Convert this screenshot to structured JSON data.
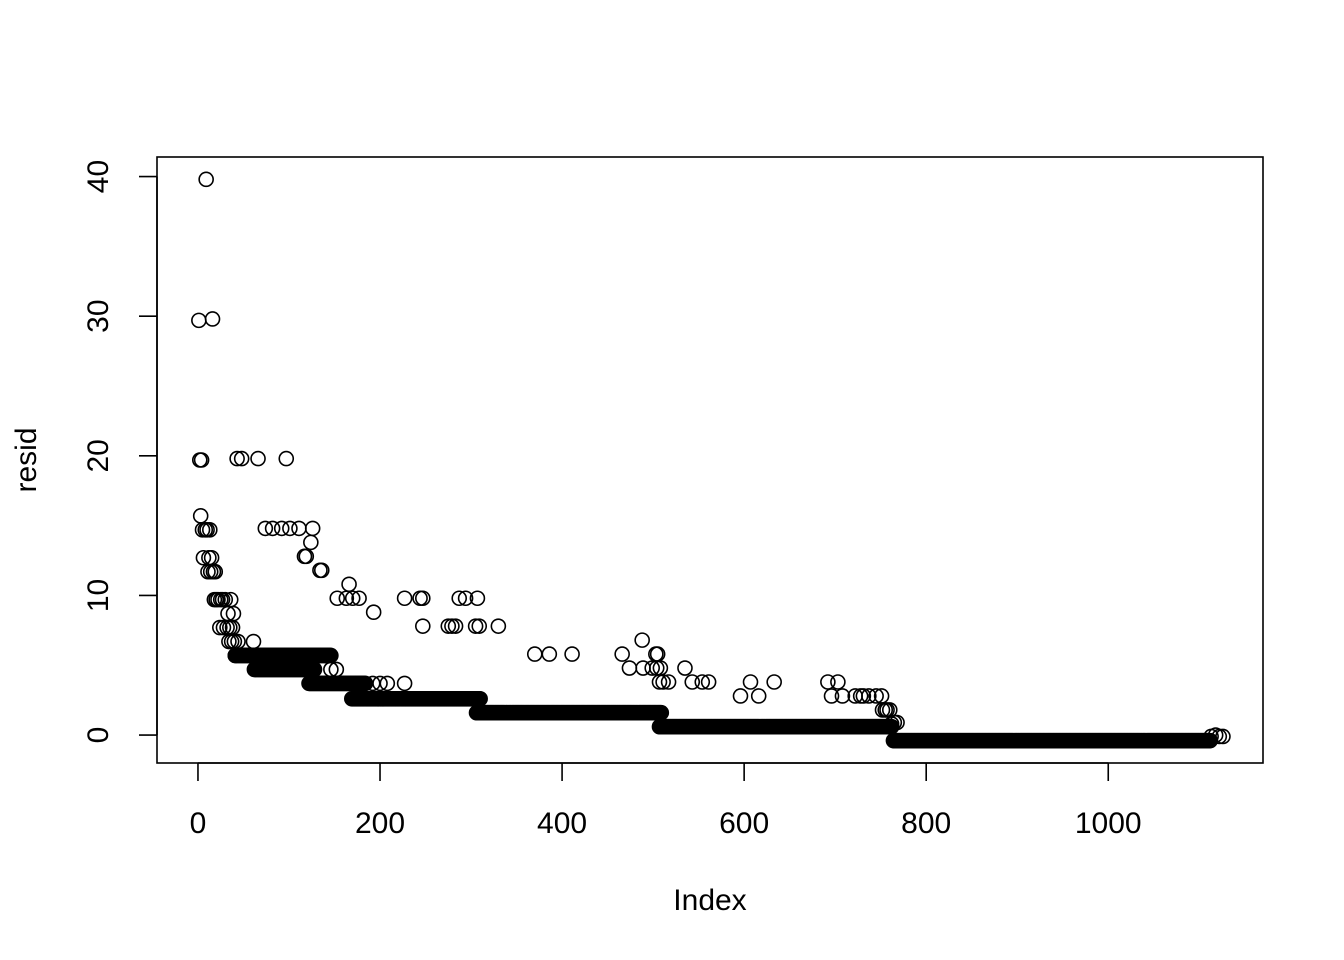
{
  "chart_data": {
    "type": "scatter",
    "xlabel": "Index",
    "ylabel": "resid",
    "xlim": [
      -45,
      1170
    ],
    "ylim": [
      -2,
      41.4
    ],
    "x_ticks": [
      0,
      200,
      400,
      600,
      800,
      1000
    ],
    "x_tick_labels": [
      "0",
      "200",
      "400",
      "600",
      "800",
      "1000"
    ],
    "y_ticks": [
      0,
      10,
      20,
      30,
      40
    ],
    "y_tick_labels": [
      "0",
      "10",
      "20",
      "30",
      "40"
    ],
    "grid": false,
    "marker": "open-circle",
    "color": "#000000",
    "series": [
      {
        "points": [
          [
            1,
            29.7
          ],
          [
            2,
            19.7
          ],
          [
            3,
            15.7
          ],
          [
            4,
            19.7
          ],
          [
            5,
            14.7
          ],
          [
            6,
            12.7
          ],
          [
            8,
            14.7
          ],
          [
            9,
            39.8
          ],
          [
            10,
            14.7
          ],
          [
            11,
            11.7
          ],
          [
            12,
            12.7
          ],
          [
            13,
            14.7
          ],
          [
            14,
            11.7
          ],
          [
            15,
            12.7
          ],
          [
            16,
            29.8
          ],
          [
            17,
            11.7
          ],
          [
            18,
            9.7
          ],
          [
            19,
            11.7
          ],
          [
            20,
            9.7
          ],
          [
            22,
            9.7
          ],
          [
            24,
            7.7
          ],
          [
            25,
            9.7
          ],
          [
            27,
            9.7
          ],
          [
            28,
            7.7
          ],
          [
            30,
            9.7
          ],
          [
            32,
            7.7
          ],
          [
            33,
            8.7
          ],
          [
            34,
            6.7
          ],
          [
            35,
            7.7
          ],
          [
            36,
            9.7
          ],
          [
            37,
            6.7
          ],
          [
            38,
            7.7
          ],
          [
            39,
            8.7
          ],
          [
            40,
            6.7
          ],
          [
            41,
            5.7
          ],
          [
            43,
            19.8
          ],
          [
            44,
            6.7
          ],
          [
            48,
            19.8
          ],
          [
            61,
            6.7
          ],
          [
            66,
            19.8
          ],
          [
            74,
            14.8
          ],
          [
            82,
            14.8
          ],
          [
            92,
            14.8
          ],
          [
            97,
            19.8
          ],
          [
            101,
            14.8
          ],
          [
            111,
            14.8
          ],
          [
            117,
            12.8
          ],
          [
            119,
            12.8
          ],
          [
            124,
            13.8
          ],
          [
            126,
            14.8
          ],
          [
            134,
            11.8
          ],
          [
            136,
            11.8
          ],
          [
            146,
            4.7
          ],
          [
            152,
            4.7
          ],
          [
            153,
            9.8
          ],
          [
            163,
            9.8
          ],
          [
            166,
            10.8
          ],
          [
            170,
            9.8
          ],
          [
            177,
            9.8
          ],
          [
            193,
            8.8
          ],
          [
            192,
            3.7
          ],
          [
            200,
            3.7
          ],
          [
            208,
            3.7
          ],
          [
            227,
            3.7
          ],
          [
            227,
            9.8
          ],
          [
            244,
            9.8
          ],
          [
            247,
            9.8
          ],
          [
            247,
            7.8
          ],
          [
            275,
            7.8
          ],
          [
            279,
            7.8
          ],
          [
            283,
            7.8
          ],
          [
            287,
            9.8
          ],
          [
            294,
            9.8
          ],
          [
            305,
            7.8
          ],
          [
            307,
            9.8
          ],
          [
            309,
            7.8
          ],
          [
            330,
            7.8
          ],
          [
            370,
            5.8
          ],
          [
            386,
            5.8
          ],
          [
            411,
            5.8
          ],
          [
            466,
            5.8
          ],
          [
            474,
            4.8
          ],
          [
            488,
            6.8
          ],
          [
            489,
            4.8
          ],
          [
            499,
            4.8
          ],
          [
            503,
            5.8
          ],
          [
            504,
            4.8
          ],
          [
            505,
            5.8
          ],
          [
            507,
            3.8
          ],
          [
            508,
            4.8
          ],
          [
            511,
            3.8
          ],
          [
            517,
            3.8
          ],
          [
            535,
            4.8
          ],
          [
            543,
            3.8
          ],
          [
            554,
            3.8
          ],
          [
            561,
            3.8
          ],
          [
            596,
            2.8
          ],
          [
            607,
            3.8
          ],
          [
            616,
            2.8
          ],
          [
            633,
            3.8
          ],
          [
            692,
            3.8
          ],
          [
            696,
            2.8
          ],
          [
            703,
            3.8
          ],
          [
            708,
            2.8
          ],
          [
            722,
            2.8
          ],
          [
            728,
            2.8
          ],
          [
            731,
            2.8
          ],
          [
            737,
            2.8
          ],
          [
            745,
            2.8
          ],
          [
            751,
            2.8
          ],
          [
            752,
            1.8
          ],
          [
            755,
            1.8
          ],
          [
            757,
            1.8
          ],
          [
            760,
            1.8
          ],
          [
            762,
            0.8
          ],
          [
            765,
            0.9
          ],
          [
            768,
            0.9
          ],
          [
            1113,
            -0.1
          ],
          [
            1118,
            0.0
          ],
          [
            1122,
            -0.1
          ],
          [
            1126,
            -0.1
          ]
        ],
        "bands": [
          {
            "x0": 41,
            "x1": 146,
            "y": 5.7
          },
          {
            "x0": 62,
            "x1": 128,
            "y": 4.7
          },
          {
            "x0": 122,
            "x1": 184,
            "y": 3.7
          },
          {
            "x0": 169,
            "x1": 310,
            "y": 2.6
          },
          {
            "x0": 306,
            "x1": 509,
            "y": 1.6
          },
          {
            "x0": 507,
            "x1": 762,
            "y": 0.6
          },
          {
            "x0": 764,
            "x1": 1112,
            "y": -0.4
          }
        ]
      }
    ]
  }
}
